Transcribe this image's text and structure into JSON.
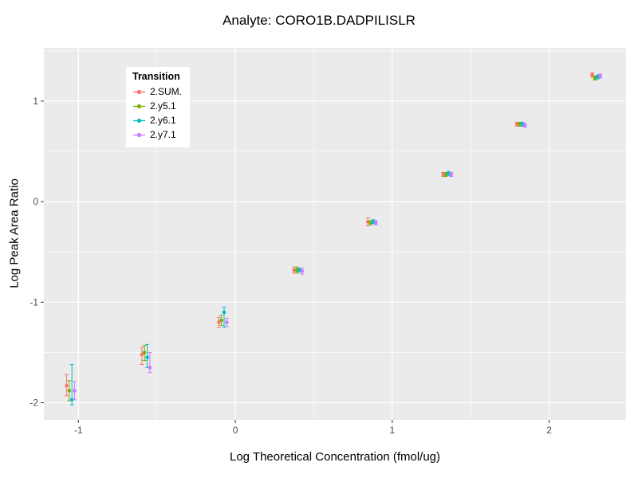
{
  "chart_data": {
    "type": "scatter",
    "title": "Analyte: CORO1B.DADPILISLR",
    "xlabel": "Log Theoretical Concentration (fmol/ug)",
    "ylabel": "Log Peak Area Ratio",
    "legend_title": "Transition",
    "legend_position": "inside-top-left",
    "grid": true,
    "panel_bg": "#EBEBEB",
    "grid_color": "#FFFFFF",
    "tick_label_color": "#4d4d4d",
    "xlim": [
      -1.22,
      2.49
    ],
    "ylim": [
      -2.17,
      1.53
    ],
    "x_ticks": [
      -1,
      0,
      1,
      2
    ],
    "y_ticks": [
      -2,
      -1,
      0,
      1
    ],
    "x_minor": [
      -0.5,
      0.5,
      1.5
    ],
    "y_minor": [
      -1.5,
      -0.5,
      0.5,
      1.5
    ],
    "x": [
      -1.05,
      -0.57,
      -0.08,
      0.4,
      0.87,
      1.35,
      1.82,
      2.3
    ],
    "series": [
      {
        "name": "2.SUM.",
        "color": "#F8766D",
        "y": [
          -1.83,
          -1.52,
          -1.2,
          -0.68,
          -0.2,
          0.27,
          0.77,
          1.26
        ],
        "y_lo": [
          -1.93,
          -1.62,
          -1.25,
          -0.71,
          -0.24,
          0.25,
          0.75,
          1.24
        ],
        "y_hi": [
          -1.72,
          -1.45,
          -1.15,
          -0.65,
          -0.16,
          0.29,
          0.79,
          1.28
        ]
      },
      {
        "name": "2.y5.1",
        "color": "#7CAE00",
        "y": [
          -1.88,
          -1.5,
          -1.18,
          -0.68,
          -0.21,
          0.27,
          0.77,
          1.23
        ],
        "y_lo": [
          -1.98,
          -1.58,
          -1.23,
          -0.71,
          -0.23,
          0.25,
          0.75,
          1.21
        ],
        "y_hi": [
          -1.78,
          -1.43,
          -1.13,
          -0.65,
          -0.19,
          0.29,
          0.79,
          1.25
        ]
      },
      {
        "name": "2.y6.1",
        "color": "#00BFC4",
        "y": [
          -1.97,
          -1.55,
          -1.1,
          -0.68,
          -0.2,
          0.28,
          0.77,
          1.24
        ],
        "y_lo": [
          -2.02,
          -1.65,
          -1.25,
          -0.7,
          -0.22,
          0.26,
          0.75,
          1.22
        ],
        "y_hi": [
          -1.62,
          -1.42,
          -1.05,
          -0.66,
          -0.18,
          0.3,
          0.79,
          1.26
        ]
      },
      {
        "name": "2.y7.1",
        "color": "#C77CFF",
        "y": [
          -1.88,
          -1.65,
          -1.2,
          -0.69,
          -0.21,
          0.27,
          0.76,
          1.25
        ],
        "y_lo": [
          -1.97,
          -1.7,
          -1.24,
          -0.72,
          -0.23,
          0.25,
          0.74,
          1.23
        ],
        "y_hi": [
          -1.79,
          -1.5,
          -1.16,
          -0.66,
          -0.19,
          0.29,
          0.78,
          1.27
        ]
      }
    ]
  }
}
